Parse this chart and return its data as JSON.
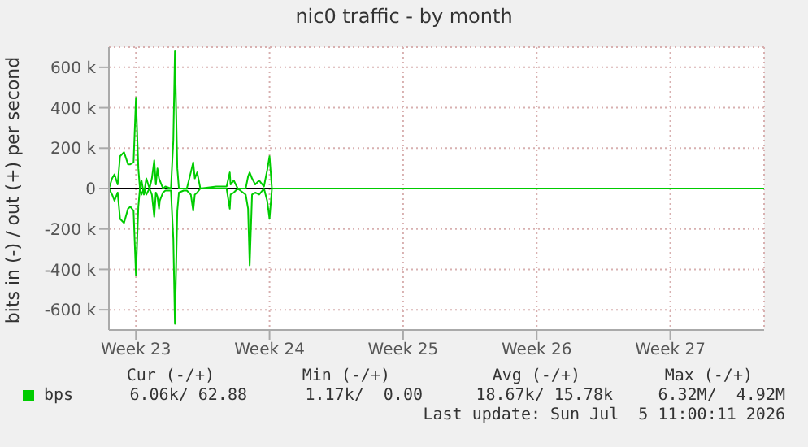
{
  "chart_data": {
    "type": "line",
    "title": "nic0 traffic - by month",
    "ylabel": "bits in (-) / out (+) per second",
    "x": [
      "2026-06-03T02:00",
      "2026-06-03T06:00",
      "2026-06-03T09:00",
      "2026-06-03T13:00",
      "2026-06-03T16:00",
      "2026-06-03T21:00",
      "2026-06-04T02:00",
      "2026-06-04T05:00",
      "2026-06-04T09:00",
      "2026-06-04T12:00",
      "2026-06-04T15:00",
      "2026-06-04T17:00",
      "2026-06-04T19:00",
      "2026-06-04T22:00",
      "2026-06-05T01:00",
      "2026-06-05T05:00",
      "2026-06-05T08:00",
      "2026-06-05T11:00",
      "2026-06-05T13:00",
      "2026-06-05T15:00",
      "2026-06-05T17:00",
      "2026-06-05T18:00",
      "2026-06-05T22:00",
      "2026-06-06T01:00",
      "2026-06-06T08:00",
      "2026-06-06T11:00",
      "2026-06-06T13:00",
      "2026-06-06T16:00",
      "2026-06-06T18:00",
      "2026-06-07T00:00",
      "2026-06-07T04:00",
      "2026-06-07T09:00",
      "2026-06-07T12:00",
      "2026-06-07T14:00",
      "2026-06-07T17:00",
      "2026-06-07T21:00",
      "2026-06-08T17:00",
      "2026-06-09T06:00",
      "2026-06-09T10:00",
      "2026-06-09T11:00",
      "2026-06-09T15:00",
      "2026-06-09T20:00",
      "2026-06-10T06:00",
      "2026-06-10T09:00",
      "2026-06-10T11:00",
      "2026-06-10T14:00",
      "2026-06-10T18:00",
      "2026-06-10T23:00",
      "2026-06-11T05:00",
      "2026-06-11T09:00",
      "2026-06-11T12:00",
      "2026-06-11T15:00",
      "2026-06-15T00:00",
      "2026-06-18T12:00",
      "2026-06-22T00:00",
      "2026-06-25T12:00",
      "2026-06-29T00:00",
      "2026-07-02T12:00",
      "2026-07-07T10:00"
    ],
    "series": [
      {
        "name": "bps",
        "color": "#00cc00",
        "values": [
          0,
          50000,
          70000,
          20000,
          160000,
          180000,
          120000,
          120000,
          130000,
          450000,
          100000,
          0,
          40000,
          -30000,
          50000,
          0,
          50000,
          140000,
          20000,
          100000,
          50000,
          40000,
          0,
          10000,
          0,
          240000,
          680000,
          100000,
          0,
          0,
          0,
          80000,
          130000,
          50000,
          80000,
          0,
          10000,
          10000,
          80000,
          20000,
          40000,
          0,
          0,
          60000,
          80000,
          50000,
          20000,
          40000,
          10000,
          90000,
          160000,
          0,
          0,
          0,
          0,
          0,
          0,
          0,
          0
        ]
      },
      {
        "color": "#00cc00",
        "values": [
          0,
          -30000,
          -60000,
          -20000,
          -150000,
          -170000,
          -100000,
          -90000,
          -110000,
          -430000,
          -90000,
          0,
          -30000,
          0,
          -30000,
          0,
          -30000,
          -140000,
          -20000,
          -40000,
          -100000,
          -60000,
          -20000,
          -10000,
          -10000,
          -250000,
          -670000,
          -110000,
          -20000,
          -10000,
          -10000,
          -30000,
          -110000,
          -30000,
          -20000,
          0,
          0,
          0,
          -100000,
          -30000,
          -20000,
          0,
          -30000,
          -100000,
          -380000,
          -30000,
          -20000,
          -30000,
          0,
          -60000,
          -150000,
          0,
          0,
          0,
          0,
          0,
          0,
          0,
          0
        ]
      }
    ],
    "xlim": [
      "2026-06-03T02:00",
      "2026-07-07T10:00"
    ],
    "xticks": [
      {
        "value": "2026-06-04T12:00",
        "label": "Week 23"
      },
      {
        "value": "2026-06-11T12:00",
        "label": "Week 24"
      },
      {
        "value": "2026-06-18T12:00",
        "label": "Week 25"
      },
      {
        "value": "2026-06-25T12:00",
        "label": "Week 26"
      },
      {
        "value": "2026-07-02T12:00",
        "label": "Week 27"
      }
    ],
    "ylim": [
      -700000,
      700000
    ],
    "yticks": [
      {
        "value": -600000,
        "label": "-600 k"
      },
      {
        "value": -400000,
        "label": "-400 k"
      },
      {
        "value": -200000,
        "label": "-200 k"
      },
      {
        "value": 0,
        "label": "0"
      },
      {
        "value": 200000,
        "label": "200 k"
      },
      {
        "value": 400000,
        "label": "400 k"
      },
      {
        "value": 600000,
        "label": "600 k"
      }
    ],
    "ref_lines": [
      {
        "axis": "y",
        "value": 0,
        "color": "#000000"
      }
    ],
    "grid": true,
    "legend": "bottom",
    "marker": "none",
    "line_style": "solid",
    "annotations": [
      "Cur (-/+)",
      "Min (-/+)",
      "Avg (-/+)",
      "Max (-/+)",
      "6.06k/ 62.88",
      "1.17k/  0.00",
      "18.67k/ 15.78k",
      "6.32M/  4.92M",
      "Last update: Sun Jul  5 11:00:11 2026"
    ]
  }
}
